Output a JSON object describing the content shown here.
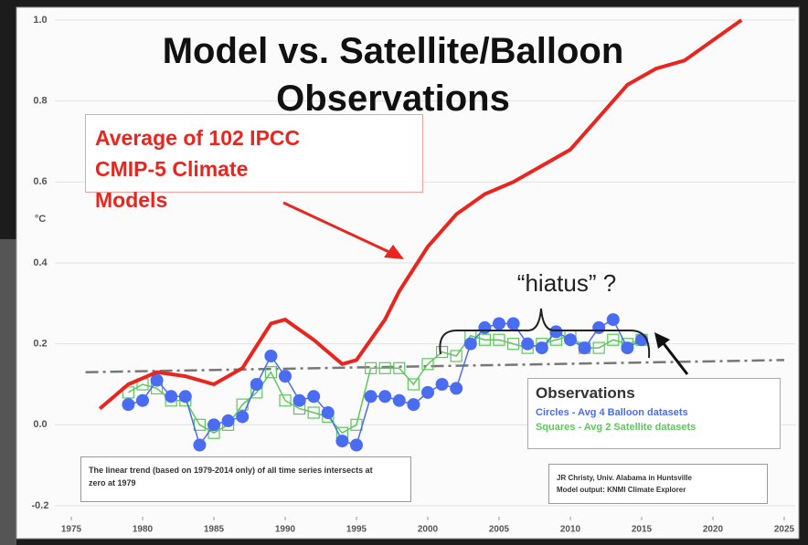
{
  "chart_data": {
    "type": "line",
    "title": "Model vs. Satellite/Balloon Observations",
    "y_label": "°C",
    "xlim": [
      1975,
      2025
    ],
    "xticks": [
      1975,
      1980,
      1985,
      1990,
      1995,
      2000,
      2005,
      2010,
      2015,
      2020,
      2025
    ],
    "ylim": [
      -0.2,
      1
    ],
    "yticks": [
      -0.2,
      {
        "value": 0,
        "label": "0.0"
      },
      0.2,
      0.4,
      0.6,
      0.8,
      {
        "value": 1,
        "label": "1.0"
      }
    ],
    "grid": true,
    "series": [
      {
        "name": "Average of 102 IPCC CMIP-5 Climate Models",
        "color": "#e8261f",
        "marker": "none",
        "x": [
          1977,
          1979,
          1981,
          1983,
          1985,
          1987,
          1989,
          1990,
          1992,
          1994,
          1995,
          1997,
          1998,
          2000,
          2002,
          2004,
          2006,
          2008,
          2010,
          2012,
          2014,
          2016,
          2018,
          2020,
          2022
        ],
        "values": [
          0.04,
          0.1,
          0.13,
          0.12,
          0.1,
          0.14,
          0.25,
          0.26,
          0.21,
          0.15,
          0.16,
          0.26,
          0.33,
          0.44,
          0.52,
          0.57,
          0.6,
          0.64,
          0.68,
          0.76,
          0.84,
          0.88,
          0.9,
          0.95,
          1.0
        ]
      },
      {
        "name": "Circles - Avg 4 Balloon datasets",
        "color": "#4a6cf0",
        "marker": "circle",
        "x": [
          1979,
          1980,
          1981,
          1982,
          1983,
          1984,
          1985,
          1986,
          1987,
          1988,
          1989,
          1990,
          1991,
          1992,
          1993,
          1994,
          1995,
          1996,
          1997,
          1998,
          1999,
          2000,
          2001,
          2002,
          2003,
          2004,
          2005,
          2006,
          2007,
          2008,
          2009,
          2010,
          2011,
          2012,
          2013,
          2014,
          2015
        ],
        "values": [
          0.05,
          0.06,
          0.11,
          0.07,
          0.07,
          -0.05,
          0.0,
          0.01,
          0.02,
          0.1,
          0.17,
          0.12,
          0.06,
          0.07,
          0.03,
          -0.04,
          -0.05,
          0.07,
          0.07,
          0.06,
          0.05,
          0.08,
          0.1,
          0.09,
          0.2,
          0.24,
          0.25,
          0.25,
          0.2,
          0.19,
          0.23,
          0.21,
          0.19,
          0.24,
          0.26,
          0.19,
          0.21
        ]
      },
      {
        "name": "Squares - Avg 2 Satellite datasets",
        "color": "#5cc85c",
        "marker": "square",
        "x": [
          1979,
          1980,
          1981,
          1982,
          1983,
          1984,
          1985,
          1986,
          1987,
          1988,
          1989,
          1990,
          1991,
          1992,
          1993,
          1994,
          1995,
          1996,
          1997,
          1998,
          1999,
          2000,
          2001,
          2002,
          2003,
          2004,
          2005,
          2006,
          2007,
          2008,
          2009,
          2010,
          2011,
          2012,
          2013,
          2014,
          2015
        ],
        "values": [
          0.08,
          0.1,
          0.09,
          0.06,
          0.06,
          0.0,
          -0.02,
          0.0,
          0.05,
          0.08,
          0.13,
          0.06,
          0.04,
          0.03,
          0.02,
          -0.02,
          0.0,
          0.14,
          0.14,
          0.14,
          0.1,
          0.15,
          0.18,
          0.17,
          0.22,
          0.21,
          0.21,
          0.2,
          0.19,
          0.2,
          0.21,
          0.22,
          0.19,
          0.19,
          0.21,
          0.2,
          0.21
        ]
      }
    ],
    "trend": {
      "color": "#777777",
      "x": [
        1976,
        2025
      ],
      "values": [
        0.13,
        0.16
      ]
    },
    "annotation_hiatus": "“hiatus” ?",
    "legend_title": "Observations",
    "note": "The linear trend (based on 1979-2014 only) of all time series intersects at zero at 1979",
    "credit": [
      "JR Christy, Univ. Alabama in Huntsville",
      "Model output: KNMI Climate Explorer"
    ]
  }
}
